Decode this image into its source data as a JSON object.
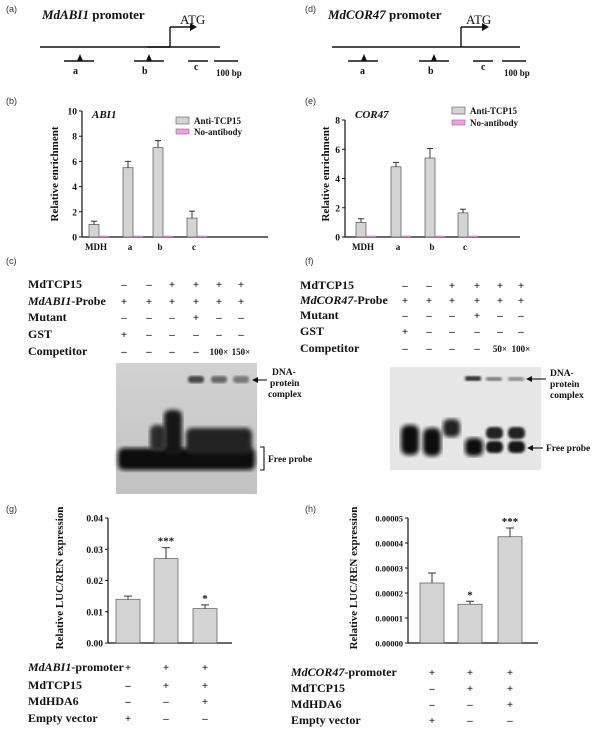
{
  "panel_letters": {
    "a": "(a)",
    "b": "(b)",
    "c": "(c)",
    "d": "(d)",
    "e": "(e)",
    "f": "(f)",
    "g": "(g)",
    "h": "(h)"
  },
  "promoter_a": {
    "gene": "MdABI1",
    "suffix": " promoter",
    "atg": "ATG",
    "sites": [
      "a",
      "b",
      "c"
    ],
    "scale": "100 bp"
  },
  "promoter_d": {
    "gene": "MdCOR47",
    "suffix": " promoter",
    "atg": "ATG",
    "sites": [
      "a",
      "b",
      "c"
    ],
    "scale": "100 bp"
  },
  "chip_b": {
    "gene_label": "ABI1",
    "ylabel": "Relative enrichment",
    "legend": [
      "Anti-TCP15",
      "No-antibody"
    ],
    "colors": {
      "anti": "#d4d4d4",
      "noab": "#e8a6dc"
    },
    "chart_data": {
      "type": "bar",
      "categories": [
        "MDH",
        "a",
        "b",
        "c"
      ],
      "ylim": [
        0,
        10
      ],
      "yticks": [
        "0",
        "2",
        "4",
        "6",
        "8",
        "10"
      ],
      "series": [
        {
          "name": "Anti-TCP15",
          "values": [
            1.0,
            5.5,
            7.1,
            1.5
          ],
          "errors": [
            0.25,
            0.5,
            0.55,
            0.55
          ]
        },
        {
          "name": "No-antibody",
          "values": [
            0,
            0,
            0.05,
            0.05
          ],
          "errors": [
            0,
            0,
            0,
            0
          ]
        }
      ]
    }
  },
  "chip_e": {
    "gene_label": "COR47",
    "ylabel": "Relative enrichment",
    "legend": [
      "Anti-TCP15",
      "No-antibody"
    ],
    "chart_data": {
      "type": "bar",
      "categories": [
        "MDH",
        "a",
        "b",
        "c"
      ],
      "ylim": [
        0,
        8
      ],
      "yticks": [
        "0",
        "2",
        "4",
        "6",
        "8"
      ],
      "series": [
        {
          "name": "Anti-TCP15",
          "values": [
            1.0,
            4.8,
            5.4,
            1.65
          ],
          "errors": [
            0.25,
            0.3,
            0.65,
            0.25
          ]
        },
        {
          "name": "No-antibody",
          "values": [
            0,
            0,
            0,
            0.05
          ],
          "errors": [
            0,
            0,
            0,
            0
          ]
        }
      ]
    }
  },
  "emsa_c": {
    "rows": [
      {
        "label": "MdTCP15",
        "italic": false,
        "signs": [
          "–",
          "–",
          "+",
          "+",
          "+",
          "+"
        ]
      },
      {
        "label": "MdABI1-Probe",
        "italic": true,
        "gene": "MdABI1",
        "rest": "-Probe",
        "signs": [
          "+",
          "+",
          "+",
          "+",
          "+",
          "+"
        ]
      },
      {
        "label": "Mutant",
        "italic": false,
        "signs": [
          "–",
          "–",
          "–",
          "+",
          "–",
          "–"
        ]
      },
      {
        "label": "GST",
        "italic": false,
        "signs": [
          "+",
          "–",
          "–",
          "–",
          "–",
          "–"
        ]
      },
      {
        "label": "Competitor",
        "italic": false,
        "signs": [
          "–",
          "–",
          "–",
          "–",
          "100×",
          "150×"
        ]
      }
    ],
    "complex_label": [
      "DNA-",
      "protein",
      "complex"
    ],
    "free_label": "Free probe"
  },
  "emsa_f": {
    "rows": [
      {
        "label": "MdTCP15",
        "signs": [
          "–",
          "–",
          "+",
          "+",
          "+",
          "+"
        ]
      },
      {
        "label": "MdCOR47-Probe",
        "gene": "MdCOR47",
        "rest": "-Probe",
        "signs": [
          "+",
          "+",
          "+",
          "+",
          "+",
          "+"
        ]
      },
      {
        "label": "Mutant",
        "signs": [
          "–",
          "–",
          "–",
          "+",
          "–",
          "–"
        ]
      },
      {
        "label": "GST",
        "signs": [
          "+",
          "–",
          "–",
          "–",
          "–",
          "–"
        ]
      },
      {
        "label": "Competitor",
        "signs": [
          "–",
          "–",
          "–",
          "–",
          "50×",
          "100×"
        ]
      }
    ],
    "complex_label": [
      "DNA-",
      "protein",
      "complex"
    ],
    "free_label": "Free probe"
  },
  "luc_g": {
    "ylabel": "Relative LUC/REN expression",
    "chart_data": {
      "type": "bar",
      "categories": [
        "1",
        "2",
        "3"
      ],
      "ylim": [
        0,
        0.04
      ],
      "yticks": [
        "0.00",
        "0.01",
        "0.02",
        "0.03",
        "0.04"
      ],
      "values": [
        0.014,
        0.027,
        0.011
      ],
      "errors": [
        0.001,
        0.0035,
        0.0012
      ],
      "sig": [
        "",
        "***",
        "*"
      ]
    },
    "rows": [
      {
        "gene": "MdABI1",
        "rest": "-promoter",
        "signs": [
          "+",
          "+",
          "+"
        ]
      },
      {
        "label": "MdTCP15",
        "signs": [
          "–",
          "+",
          "+"
        ]
      },
      {
        "label": "MdHDA6",
        "signs": [
          "–",
          "–",
          "+"
        ]
      },
      {
        "label": "Empty vector",
        "signs": [
          "+",
          "–",
          "–"
        ]
      }
    ]
  },
  "luc_h": {
    "ylabel": "Relative LUC/REN expression",
    "chart_data": {
      "type": "bar",
      "categories": [
        "1",
        "2",
        "3"
      ],
      "ylim": [
        0,
        5e-05
      ],
      "yticks": [
        "0.00000",
        "0.00001",
        "0.00002",
        "0.00003",
        "0.00004",
        "0.00005"
      ],
      "values": [
        2.4e-05,
        1.55e-05,
        4.25e-05
      ],
      "errors": [
        4e-06,
        1.2e-06,
        3.5e-06
      ],
      "sig": [
        "",
        "*",
        "***"
      ]
    },
    "rows": [
      {
        "gene": "MdCOR47",
        "rest": "-promoter",
        "signs": [
          "+",
          "+",
          "+"
        ]
      },
      {
        "label": "MdTCP15",
        "signs": [
          "–",
          "+",
          "+"
        ]
      },
      {
        "label": "MdHDA6",
        "signs": [
          "–",
          "–",
          "+"
        ]
      },
      {
        "label": "Empty vector",
        "signs": [
          "+",
          "–",
          "–"
        ]
      }
    ]
  }
}
